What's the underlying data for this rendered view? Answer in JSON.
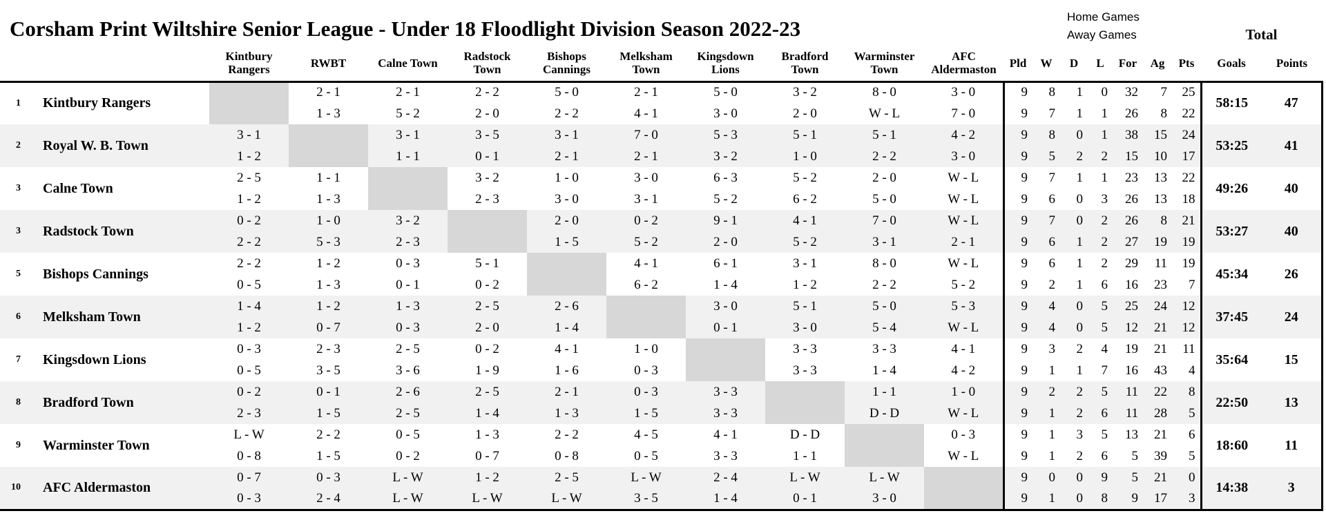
{
  "title": "Corsham Print Wiltshire Senior League - Under 18 Floodlight Division Season 2022-23",
  "legend": {
    "home_label": "Home Games",
    "away_label": "Away Games",
    "total_label": "Total"
  },
  "columns": {
    "opponents": [
      "Kintbury Rangers",
      "RWBT",
      "Calne Town",
      "Radstock Town",
      "Bishops Cannings",
      "Melksham Town",
      "Kingsdown Lions",
      "Bradford Town",
      "Warminster Town",
      "AFC Aldermaston"
    ],
    "stats": [
      "Pld",
      "W",
      "D",
      "L",
      "For",
      "Ag",
      "Pts"
    ],
    "goals_label": "Goals",
    "points_label": "Points"
  },
  "colors": {
    "stripe": "#f1f1f1",
    "diagonal": "#d7d7d7",
    "line": "#000000"
  },
  "teams": [
    {
      "rank": "1",
      "name": "Kintbury Rangers",
      "home_results": [
        "",
        "2 - 1",
        "2 - 1",
        "2 - 2",
        "5 - 0",
        "2 - 1",
        "5 - 0",
        "3 - 2",
        "8 - 0",
        "3 - 0"
      ],
      "away_results": [
        "",
        "1 - 3",
        "5 - 2",
        "2 - 0",
        "2 - 2",
        "4 - 1",
        "3 - 0",
        "2 - 0",
        "W - L",
        "7 - 0"
      ],
      "home_stats": [
        "9",
        "8",
        "1",
        "0",
        "32",
        "7",
        "25"
      ],
      "away_stats": [
        "9",
        "7",
        "1",
        "1",
        "26",
        "8",
        "22"
      ],
      "goals": "58:15",
      "points": "47"
    },
    {
      "rank": "2",
      "name": "Royal W. B. Town",
      "home_results": [
        "3 - 1",
        "",
        "3 - 1",
        "3 - 5",
        "3 - 1",
        "7 - 0",
        "5 - 3",
        "5 - 1",
        "5 - 1",
        "4 - 2"
      ],
      "away_results": [
        "1 - 2",
        "",
        "1 - 1",
        "0 - 1",
        "2 - 1",
        "2 - 1",
        "3 - 2",
        "1 - 0",
        "2 - 2",
        "3 - 0"
      ],
      "home_stats": [
        "9",
        "8",
        "0",
        "1",
        "38",
        "15",
        "24"
      ],
      "away_stats": [
        "9",
        "5",
        "2",
        "2",
        "15",
        "10",
        "17"
      ],
      "goals": "53:25",
      "points": "41"
    },
    {
      "rank": "3",
      "name": "Calne Town",
      "home_results": [
        "2 - 5",
        "1 - 1",
        "",
        "3 - 2",
        "1 - 0",
        "3 - 0",
        "6 - 3",
        "5 - 2",
        "2 - 0",
        "W - L"
      ],
      "away_results": [
        "1 - 2",
        "1 - 3",
        "",
        "2 - 3",
        "3 - 0",
        "3 - 1",
        "5 - 2",
        "6 - 2",
        "5 - 0",
        "W - L"
      ],
      "home_stats": [
        "9",
        "7",
        "1",
        "1",
        "23",
        "13",
        "22"
      ],
      "away_stats": [
        "9",
        "6",
        "0",
        "3",
        "26",
        "13",
        "18"
      ],
      "goals": "49:26",
      "points": "40"
    },
    {
      "rank": "3",
      "name": "Radstock Town",
      "home_results": [
        "0 - 2",
        "1 - 0",
        "3 - 2",
        "",
        "2 - 0",
        "0 - 2",
        "9 - 1",
        "4 - 1",
        "7 - 0",
        "W - L"
      ],
      "away_results": [
        "2 - 2",
        "5 - 3",
        "2 - 3",
        "",
        "1 - 5",
        "5 - 2",
        "2 - 0",
        "5 - 2",
        "3 - 1",
        "2 - 1"
      ],
      "home_stats": [
        "9",
        "7",
        "0",
        "2",
        "26",
        "8",
        "21"
      ],
      "away_stats": [
        "9",
        "6",
        "1",
        "2",
        "27",
        "19",
        "19"
      ],
      "goals": "53:27",
      "points": "40"
    },
    {
      "rank": "5",
      "name": "Bishops Cannings",
      "home_results": [
        "2 - 2",
        "1 - 2",
        "0 - 3",
        "5 - 1",
        "",
        "4 - 1",
        "6 - 1",
        "3 - 1",
        "8 - 0",
        "W - L"
      ],
      "away_results": [
        "0 - 5",
        "1 - 3",
        "0 - 1",
        "0 - 2",
        "",
        "6 - 2",
        "1 - 4",
        "1 - 2",
        "2 - 2",
        "5 - 2"
      ],
      "home_stats": [
        "9",
        "6",
        "1",
        "2",
        "29",
        "11",
        "19"
      ],
      "away_stats": [
        "9",
        "2",
        "1",
        "6",
        "16",
        "23",
        "7"
      ],
      "goals": "45:34",
      "points": "26"
    },
    {
      "rank": "6",
      "name": "Melksham Town",
      "home_results": [
        "1 - 4",
        "1 - 2",
        "1 - 3",
        "2 - 5",
        "2 - 6",
        "",
        "3 - 0",
        "5 - 1",
        "5 - 0",
        "5 - 3"
      ],
      "away_results": [
        "1 - 2",
        "0 - 7",
        "0 - 3",
        "2 - 0",
        "1 - 4",
        "",
        "0 - 1",
        "3 - 0",
        "5 - 4",
        "W - L"
      ],
      "home_stats": [
        "9",
        "4",
        "0",
        "5",
        "25",
        "24",
        "12"
      ],
      "away_stats": [
        "9",
        "4",
        "0",
        "5",
        "12",
        "21",
        "12"
      ],
      "goals": "37:45",
      "points": "24"
    },
    {
      "rank": "7",
      "name": "Kingsdown Lions",
      "home_results": [
        "0 - 3",
        "2 - 3",
        "2 - 5",
        "0 - 2",
        "4 - 1",
        "1 - 0",
        "",
        "3 - 3",
        "3 - 3",
        "4 - 1"
      ],
      "away_results": [
        "0 - 5",
        "3 - 5",
        "3 - 6",
        "1 - 9",
        "1 - 6",
        "0 - 3",
        "",
        "3 - 3",
        "1 - 4",
        "4 - 2"
      ],
      "home_stats": [
        "9",
        "3",
        "2",
        "4",
        "19",
        "21",
        "11"
      ],
      "away_stats": [
        "9",
        "1",
        "1",
        "7",
        "16",
        "43",
        "4"
      ],
      "goals": "35:64",
      "points": "15"
    },
    {
      "rank": "8",
      "name": "Bradford Town",
      "home_results": [
        "0 - 2",
        "0 - 1",
        "2 - 6",
        "2 - 5",
        "2 - 1",
        "0 - 3",
        "3 - 3",
        "",
        "1 - 1",
        "1 - 0"
      ],
      "away_results": [
        "2 - 3",
        "1 - 5",
        "2 - 5",
        "1 - 4",
        "1 - 3",
        "1 - 5",
        "3 - 3",
        "",
        "D - D",
        "W - L"
      ],
      "home_stats": [
        "9",
        "2",
        "2",
        "5",
        "11",
        "22",
        "8"
      ],
      "away_stats": [
        "9",
        "1",
        "2",
        "6",
        "11",
        "28",
        "5"
      ],
      "goals": "22:50",
      "points": "13"
    },
    {
      "rank": "9",
      "name": "Warminster Town",
      "home_results": [
        "L - W",
        "2 - 2",
        "0 - 5",
        "1 - 3",
        "2 - 2",
        "4 - 5",
        "4 - 1",
        "D - D",
        "",
        "0 - 3"
      ],
      "away_results": [
        "0 - 8",
        "1 - 5",
        "0 - 2",
        "0 - 7",
        "0 - 8",
        "0 - 5",
        "3 - 3",
        "1 - 1",
        "",
        "W - L"
      ],
      "home_stats": [
        "9",
        "1",
        "3",
        "5",
        "13",
        "21",
        "6"
      ],
      "away_stats": [
        "9",
        "1",
        "2",
        "6",
        "5",
        "39",
        "5"
      ],
      "goals": "18:60",
      "points": "11"
    },
    {
      "rank": "10",
      "name": "AFC Aldermaston",
      "home_results": [
        "0 - 7",
        "0 - 3",
        "L - W",
        "1 - 2",
        "2 - 5",
        "L - W",
        "2 - 4",
        "L - W",
        "L - W",
        ""
      ],
      "away_results": [
        "0 - 3",
        "2 - 4",
        "L - W",
        "L - W",
        "L - W",
        "3 - 5",
        "1 - 4",
        "0 - 1",
        "3 - 0",
        ""
      ],
      "home_stats": [
        "9",
        "0",
        "0",
        "9",
        "5",
        "21",
        "0"
      ],
      "away_stats": [
        "9",
        "1",
        "0",
        "8",
        "9",
        "17",
        "3"
      ],
      "goals": "14:38",
      "points": "3"
    }
  ]
}
